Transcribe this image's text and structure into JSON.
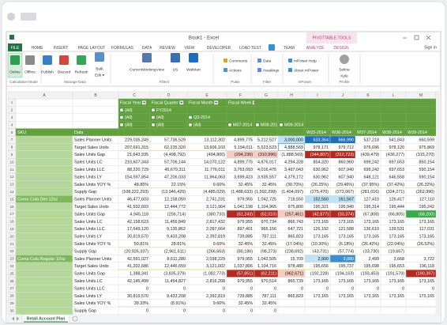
{
  "window": {
    "title": "Book1 - Excel",
    "context_tab": "PIVOTTABLE TOOLS",
    "sign_in": "Sign in"
  },
  "tabs": [
    "FILE",
    "HOME",
    "INSERT",
    "PAGE LAYOUT",
    "FORMULAS",
    "DATA",
    "REVIEW",
    "VIEW",
    "DEVELOPER",
    "LOAD TEST",
    "TEAM",
    "ANALYZE",
    "DESIGN"
  ],
  "ribbon": [
    {
      "label": "Calculation Mode",
      "items": [
        {
          "lines": [
            "Online"
          ]
        },
        {
          "lines": [
            "Offline"
          ]
        }
      ]
    },
    {
      "label": "Manage Data",
      "items": [
        {
          "lines": [
            "Publish"
          ]
        },
        {
          "lines": [
            "Discard"
          ]
        },
        {
          "lines": [
            "Refresh"
          ]
        },
        {
          "lines": [
            "Bulk",
            "Edit ▾"
          ]
        }
      ]
    },
    {
      "label": "Filters",
      "items": [
        {
          "lines": [
            "CurrentWorkingView"
          ]
        },
        {
          "lines": [
            "US"
          ]
        },
        {
          "lines": [
            "WalMart"
          ]
        }
      ]
    },
    {
      "label": "Pulse",
      "items": [
        {
          "lines": [
            "Comments"
          ]
        },
        {
          "lines": [
            "Actions"
          ]
        }
      ]
    },
    {
      "label": "Filter",
      "items": [
        {
          "lines": [
            "Data"
          ]
        },
        {
          "lines": [
            "Headings"
          ]
        }
      ]
    },
    {
      "label": "mPower",
      "items": [
        {
          "lines": [
            "mPower Help"
          ]
        },
        {
          "lines": [
            "About mPower"
          ]
        }
      ]
    },
    {
      "label": "Profile",
      "items": [
        {
          "lines": [
            "Selina",
            "Kyle"
          ]
        }
      ]
    }
  ],
  "columns": [
    "A",
    "B",
    "C",
    "D",
    "E",
    "F",
    "G",
    "H",
    "I",
    "J",
    "K",
    "L",
    "M"
  ],
  "rows": [
    {
      "num": "1",
      "cells": [
        null,
        null,
        "Fiscal Year",
        "Fiscal Quarter",
        "Fiscal Month",
        "Fiscal Week",
        null,
        null,
        null,
        null,
        null,
        null,
        null
      ]
    },
    {
      "num": "2",
      "cells": [
        null,
        null,
        "(All)",
        "FY2014",
        null,
        null,
        null,
        null,
        null,
        null,
        null,
        null,
        null
      ]
    },
    {
      "num": "3",
      "cells": [
        null,
        null,
        "(All)",
        "(All)",
        "Q3-2014",
        null,
        null,
        null,
        null,
        null,
        null,
        null,
        null
      ]
    },
    {
      "num": "4",
      "cells": [
        null,
        null,
        "(All)",
        "(All)",
        "(All)",
        "M07-2014",
        "M08-2014",
        "M09-2014",
        null,
        null,
        null,
        null,
        null
      ]
    },
    {
      "num": "5",
      "cells": [
        "SKU",
        "Data",
        null,
        null,
        null,
        null,
        null,
        null,
        "W33-2014",
        "W36-2014",
        "W37-2014",
        "W38-2014",
        "W39-2014"
      ]
    },
    {
      "num": "7",
      "cells": [
        null,
        "Sales Planner Units",
        "229,035,249",
        "57,736,529",
        "13,112,302",
        "4,899,775",
        "5,212,527",
        "3,000,000",
        "633,364",
        "666,990",
        "537,218",
        "541,843",
        "660,599"
      ]
    },
    {
      "num": "8",
      "cells": [
        null,
        "Target Sales Units",
        "207,691,315",
        "62,235,320",
        "13,606,103",
        "5,194,011",
        "5,523,523",
        "4,888,569",
        "978,171",
        "979,712",
        "976,696",
        "978,120",
        "975,869"
      ]
    },
    {
      "num": "9",
      "cells": [
        null,
        "Sales Units Gap",
        "21,643,935",
        "(4,498,792)",
        "(494,800)",
        "(294,236)",
        "(310,996)",
        "(1,888,569)",
        "(344,807)",
        "(312,723)",
        "(439,479)",
        "(436,277)",
        "(315,270)"
      ]
    },
    {
      "num": "10",
      "cells": [
        null,
        "Sales Units LC",
        "210,607,343",
        "57,706,144",
        "14,070,122",
        "4,899,775",
        "4,876,017",
        "4,294,328",
        "854,320",
        "860,960",
        "699,242",
        "697,653",
        "850,154"
      ]
    },
    {
      "num": "11",
      "cells": [
        null,
        "Sales Units LLC",
        "88,220,729",
        "45,679,311",
        "11,776,011",
        "3,763,093",
        "4,016,475",
        "3,497,043",
        "630,962",
        "607,940",
        "699,242",
        "697,653",
        "590,154"
      ]
    },
    {
      "num": "12",
      "cells": [
        null,
        "Sales Units LY",
        "154,597,854",
        "47,206,033",
        "11,964,063",
        "3,699,423",
        "3,935,557",
        "4,379,172",
        "630,962",
        "607,940",
        "648,121",
        "646,558",
        "590,154"
      ]
    },
    {
      "num": "13",
      "cells": [
        null,
        "Sales Units YOY %",
        "48.85%",
        "22.15%",
        "9.60%",
        "32.45%",
        "32.45%",
        "(30.70%)",
        "(26.25%)",
        "(29.46%)",
        "(37.95%)",
        "(37.42%)",
        "(26.32%)"
      ]
    },
    {
      "num": "14",
      "cells": [
        null,
        "Supply Gap",
        "(108,222,293)",
        "(13,946,426)",
        "(4,485,029)",
        "(1,488,633)",
        "(1,592,299)",
        "(1,404,097)",
        "(275,470)",
        "(272,067)",
        "(281,016)",
        "(324,271)",
        "(262,990)"
      ]
    },
    {
      "num": "15",
      "cells": [
        "Coma Cola Diet 12oz",
        "Sales Planner Units",
        "46,477,603",
        "12,158,059",
        "2,741,231",
        "979,955",
        "1,042,725",
        "718,550",
        "152,560",
        "161,567",
        "127,410",
        "126,417",
        "127,110"
      ]
    },
    {
      "num": "16",
      "cells": [
        null,
        "Target Sales Units",
        "41,532,603",
        "12,444,772",
        "3,121,964",
        "1,041,198",
        "1,104,965",
        "975,800",
        "195,321",
        "195,940",
        "195,314",
        "195,444",
        "195,242"
      ]
    },
    {
      "num": "17",
      "cells": [
        null,
        "Sales Units Gap",
        "4,945,118",
        "(256,714)",
        "(380,733)",
        "(61,243)",
        "(62,010)",
        "(257,461)",
        "(42,877)",
        "(33,374)",
        "(67,808)",
        "(66,805)",
        "(68,200)"
      ]
    },
    {
      "num": "18",
      "cells": [
        null,
        "Sales Units LC",
        "42,158,623",
        "11,456,849",
        "2,817,432",
        "979,955",
        "970,734",
        "866,743",
        "173,165",
        "173,165",
        "173,165",
        "173,165",
        "173,165"
      ]
    },
    {
      "num": "19",
      "cells": [
        null,
        "Sales Units LLC",
        "17,649,120",
        "9,135,862",
        "2,097,664",
        "897,401",
        "965,156",
        "647,721",
        "126,192",
        "121,588",
        "136,610",
        "139,531",
        "117,031"
      ]
    },
    {
      "num": "20",
      "cells": [
        null,
        "Sales Units LY",
        "30,819,570",
        "9,433,208",
        "2,392,819",
        "739,885",
        "787,111",
        "865,823",
        "173,165",
        "173,165",
        "173,165",
        "173,165",
        "173,165"
      ]
    },
    {
      "num": "21",
      "cells": [
        null,
        "Sales Units YOY %",
        "50.81%",
        "28.81%",
        "9.60%",
        "32.45%",
        "32.45%",
        "(17.04%)",
        "(10.30%)",
        "(6.18%)",
        "(26.42%)",
        "(22.04%)",
        "(26.52%)"
      ]
    },
    {
      "num": "22",
      "cells": [
        null,
        "Supply Gap",
        "(20,926,337)",
        "(2,961,611)",
        "(266,663)",
        "(80,186)",
        "(98,273)",
        "(238,692)",
        "(43,731)",
        "(57,774)",
        "(33,730)",
        "(19,667)",
        null
      ]
    },
    {
      "num": "23",
      "cells": [
        "Coma Cola Regular 12oz",
        "Sales Planner Units",
        "42,591,027",
        "8,611,280",
        "2,038,229",
        "979,955",
        "1,042,505",
        "15,709",
        "2,900",
        "3,080",
        "2,499",
        "3,668",
        "3,722"
      ]
    },
    {
      "num": "24",
      "cells": [
        null,
        "Target Sales Units",
        "41,202,686",
        "12,446,659",
        "3,121,002",
        "1,037,806",
        "1,104,716",
        "978,480",
        "195,656",
        "195,737",
        "195,698",
        "195,653",
        "196,118"
      ]
    },
    {
      "num": "25",
      "cells": [
        null,
        "Sales Units Gap",
        "1,388,341",
        "(3,835,379)",
        "(1,082,773)",
        "(57,851)",
        "(62,211)",
        "(962,671)",
        "(192,228)",
        "(194,163)",
        "(193,453)",
        "(191,579)",
        "(190,397)"
      ]
    },
    {
      "num": "26",
      "cells": [
        null,
        "Sales Units LC",
        "42,145,499",
        "11,454,827",
        "2,816,208",
        "979,955",
        "970,514",
        "865,739",
        "173,165",
        "173,165",
        "173,165",
        "173,165",
        "173,165"
      ]
    },
    {
      "num": "27",
      "cells": [
        null,
        "Sales Units LLC",
        "0",
        "0",
        "0",
        "0",
        "0",
        "0",
        "0",
        "0",
        "0",
        "0",
        "0"
      ]
    },
    {
      "num": "28",
      "cells": [
        null,
        "Sales Units LY",
        "30,819,570",
        "9,433,208",
        "2,392,819",
        "739,885",
        "787,111",
        "865,823",
        "173,165",
        "173,165",
        "173,165",
        "173,165",
        "173,165"
      ]
    },
    {
      "num": "29",
      "cells": [
        null,
        "Sales Units YOY %",
        "39.33%",
        "(8.91%)",
        "9.60%",
        "32.45%",
        "32.45%",
        null,
        null,
        null,
        null,
        null,
        null
      ]
    },
    {
      "num": "30",
      "cells": [
        null,
        "Supply Gap",
        "0",
        "0",
        "0",
        "0",
        "0",
        null,
        null,
        null,
        null,
        null,
        null
      ]
    }
  ],
  "sheet_tab": "Retail Account Plan"
}
